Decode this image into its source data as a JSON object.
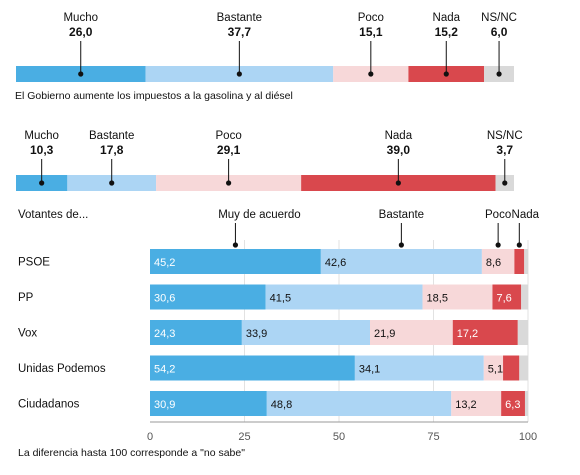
{
  "colors": {
    "mucho": "#4aaee3",
    "bastante": "#acd5f4",
    "poco": "#f7d8d9",
    "nada": "#d9484d",
    "nsnc": "#d9d9d9",
    "axis": "#9a9a9a",
    "grid": "#e2e2e2"
  },
  "chart_data": [
    {
      "type": "bar",
      "orientation": "horizontal-stacked",
      "title": "",
      "caption": "El Gobierno aumente los impuestos a la gasolina y al diésel",
      "categories": [
        "Mucho",
        "Bastante",
        "Poco",
        "Nada",
        "NS/NC"
      ],
      "values": [
        26.0,
        37.7,
        15.1,
        15.2,
        6.0
      ],
      "value_labels": [
        "26,0",
        "37,7",
        "15,1",
        "15,2",
        "6,0"
      ]
    },
    {
      "type": "bar",
      "orientation": "horizontal-stacked",
      "title": "",
      "caption": "",
      "categories": [
        "Mucho",
        "Bastante",
        "Poco",
        "Nada",
        "NS/NC"
      ],
      "values": [
        10.3,
        17.8,
        29.1,
        39.0,
        3.7
      ],
      "value_labels": [
        "10,3",
        "17,8",
        "29,1",
        "39,0",
        "3,7"
      ]
    },
    {
      "type": "bar",
      "orientation": "horizontal-stacked",
      "title": "Votantes de...",
      "legend": [
        "Muy de acuerdo",
        "Bastante",
        "Poco",
        "Nada"
      ],
      "categories": [
        "PSOE",
        "PP",
        "Vox",
        "Unidas Podemos",
        "Ciudadanos"
      ],
      "series": [
        {
          "name": "Muy de acuerdo",
          "values": [
            45.2,
            30.6,
            24.3,
            54.2,
            30.9
          ],
          "labels": [
            "45,2",
            "30,6",
            "24,3",
            "54,2",
            "30,9"
          ]
        },
        {
          "name": "Bastante",
          "values": [
            42.6,
            41.5,
            33.9,
            34.1,
            48.8
          ],
          "labels": [
            "42,6",
            "41,5",
            "33,9",
            "34,1",
            "48,8"
          ]
        },
        {
          "name": "Poco",
          "values": [
            8.6,
            18.5,
            21.9,
            5.1,
            13.2
          ],
          "labels": [
            "8,6",
            "18,5",
            "21,9",
            "5,1",
            "13,2"
          ]
        },
        {
          "name": "Nada",
          "values": [
            2.6,
            7.6,
            17.2,
            4.3,
            6.3
          ],
          "labels": [
            "",
            "7,6",
            "17,2",
            "",
            "6,3"
          ]
        }
      ],
      "xlim": [
        0,
        100
      ],
      "xticks": [
        "0",
        "25",
        "50",
        "75",
        "100"
      ],
      "grid": true,
      "footnote": "La diferencia hasta 100 corresponde a \"no sabe\""
    }
  ]
}
